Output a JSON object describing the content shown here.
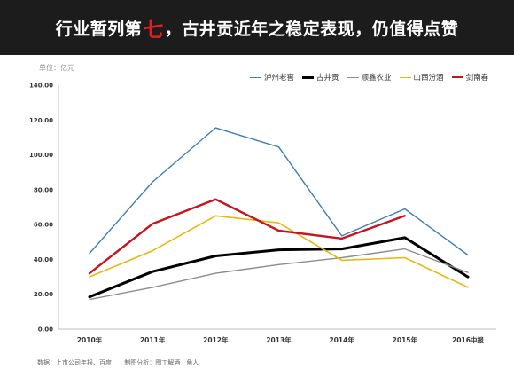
{
  "banner": {
    "title_pre": "行业暂列第",
    "title_highlight": "七",
    "title_post": "，古井贡近年之稳定表现，仍值得点赞",
    "highlight_color": "#e02020"
  },
  "chart_data": {
    "type": "line",
    "unit_label": "单位：亿元",
    "categories": [
      "2010年",
      "2011年",
      "2012年",
      "2013年",
      "2014年",
      "2015年",
      "2016中报"
    ],
    "ylim": [
      0,
      140
    ],
    "yticks": [
      "0.00",
      "20.00",
      "40.00",
      "60.00",
      "80.00",
      "100.00",
      "120.00",
      "140.00"
    ],
    "grid": false,
    "legend_position": "top-right",
    "series": [
      {
        "name": "泸州老窖",
        "color": "#3d7fb5",
        "width": 1.4,
        "values": [
          43.5,
          84.5,
          115.5,
          104.5,
          53.5,
          69,
          42.5
        ]
      },
      {
        "name": "古井贡",
        "color": "#000000",
        "width": 3,
        "values": [
          18.5,
          33,
          42,
          45.5,
          46,
          52.5,
          30
        ]
      },
      {
        "name": "顺鑫农业",
        "color": "#8c8c8c",
        "width": 1.4,
        "values": [
          17,
          24,
          32,
          37,
          41,
          46,
          32.5
        ]
      },
      {
        "name": "山西汾酒",
        "color": "#e8b90c",
        "width": 1.6,
        "values": [
          30,
          45,
          65,
          61,
          39.5,
          41,
          24
        ]
      },
      {
        "name": "剑南春",
        "color": "#c8141e",
        "width": 2.4,
        "values": [
          32,
          60.5,
          74.5,
          56.5,
          52,
          65,
          null
        ]
      }
    ]
  },
  "footer": {
    "source": "数据：上市公司年报、百度",
    "analysis": "制图分析：图丁解酒　角人"
  }
}
